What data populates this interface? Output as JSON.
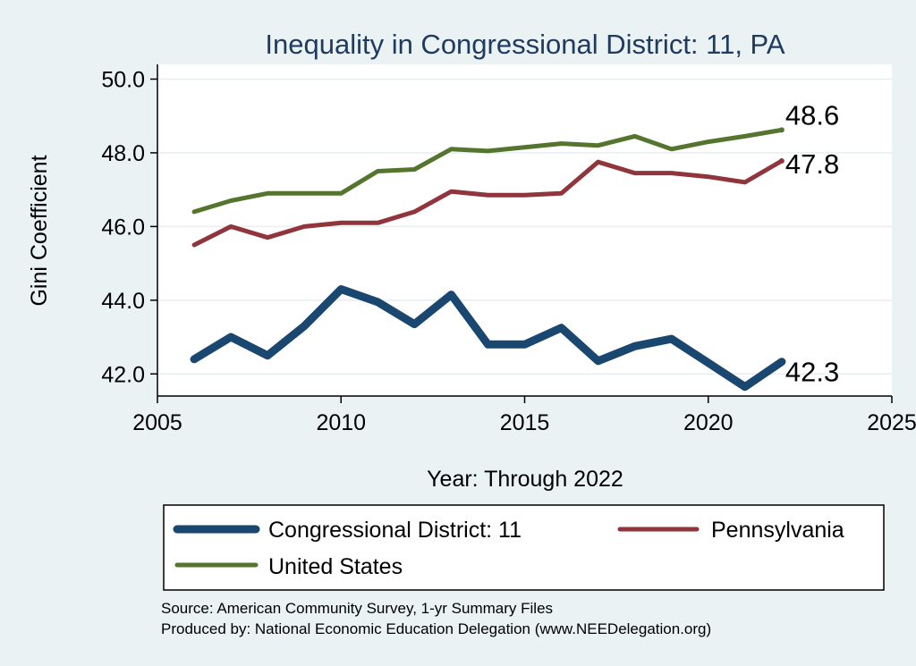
{
  "chart_data": {
    "type": "line",
    "title": "Inequality in Congressional District:  11, PA",
    "xlabel": "Year: Through 2022",
    "ylabel": "Gini Coefficient",
    "xlim": [
      2005,
      2025
    ],
    "ylim": [
      41.4,
      50.4
    ],
    "xticks": [
      "2005",
      "2010",
      "2015",
      "2020",
      "2025"
    ],
    "yticks": [
      "42.0",
      "44.0",
      "46.0",
      "48.0",
      "50.0"
    ],
    "grid": true,
    "legend_position": "bottom",
    "series": [
      {
        "name": "Congressional District:  11",
        "color": "#1a476f",
        "x": [
          2006,
          2007,
          2008,
          2009,
          2010,
          2011,
          2012,
          2013,
          2014,
          2015,
          2016,
          2017,
          2018,
          2019,
          2020,
          2021,
          2022
        ],
        "values": [
          42.4,
          43.0,
          42.5,
          43.3,
          44.3,
          43.95,
          43.35,
          44.15,
          42.8,
          42.8,
          43.25,
          42.35,
          42.75,
          42.95,
          42.3,
          41.65,
          42.33
        ],
        "end_label": "42.3"
      },
      {
        "name": "Pennsylvania",
        "color": "#90353b",
        "x": [
          2006,
          2007,
          2008,
          2009,
          2010,
          2011,
          2012,
          2013,
          2014,
          2015,
          2016,
          2017,
          2018,
          2019,
          2020,
          2021,
          2022
        ],
        "values": [
          45.5,
          46.0,
          45.7,
          46.0,
          46.1,
          46.1,
          46.4,
          46.95,
          46.85,
          46.85,
          46.9,
          47.75,
          47.45,
          47.45,
          47.35,
          47.2,
          47.78
        ],
        "end_label": "47.8"
      },
      {
        "name": "United States",
        "color": "#55752f",
        "x": [
          2006,
          2007,
          2008,
          2009,
          2010,
          2011,
          2012,
          2013,
          2014,
          2015,
          2016,
          2017,
          2018,
          2019,
          2020,
          2021,
          2022
        ],
        "values": [
          46.4,
          46.7,
          46.9,
          46.9,
          46.9,
          47.5,
          47.55,
          48.1,
          48.05,
          48.15,
          48.25,
          48.2,
          48.45,
          48.1,
          48.3,
          48.45,
          48.62
        ],
        "end_label": "48.6"
      }
    ],
    "legend": [
      "Congressional District:  11",
      "Pennsylvania",
      "United States"
    ],
    "notes": [
      "Source: American Community Survey, 1-yr Summary Files",
      "Produced by: National Economic Education Delegation (www.NEEDelegation.org)"
    ]
  }
}
